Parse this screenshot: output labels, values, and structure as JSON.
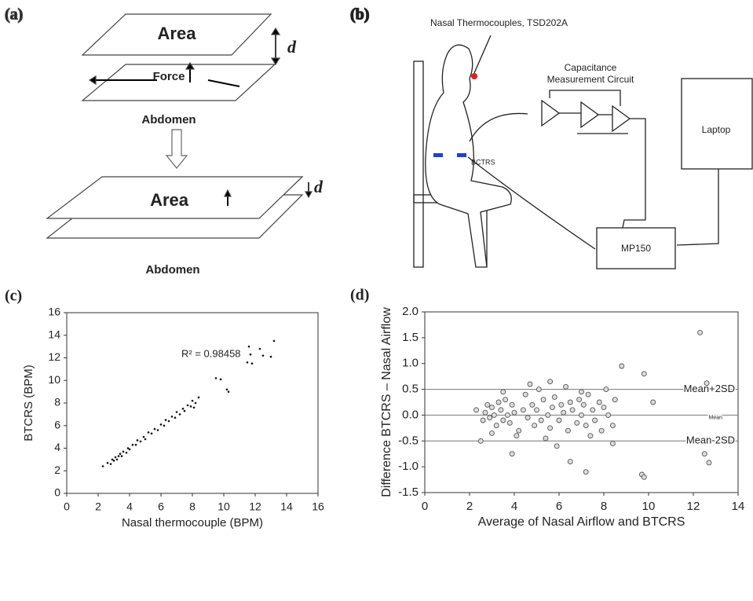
{
  "panels": {
    "a": {
      "label": "(a)",
      "top_area": "Area",
      "force": "Force",
      "top_abdomen": "Abdomen",
      "d_top": "d",
      "bottom_area": "Area",
      "d_bottom": "d",
      "bottom_abdomen": "Abdomen"
    },
    "b": {
      "label": "(b)",
      "sensor": "Nasal Thermocouples, TSD202A",
      "circuit_line1": "Capacitance",
      "circuit_line2": "Measurement Circuit",
      "laptop": "Laptop",
      "belt": "BCTRS",
      "amplifier": "MP150"
    }
  },
  "chart_data": [
    {
      "type": "scatter",
      "panel_label": "(c)",
      "x_label": "Nasal thermocouple (BPM)",
      "y_label": "BTCRS (BPM)",
      "annotation": "R² = 0.98458",
      "color": "#111111",
      "x": [
        2.3,
        2.6,
        2.8,
        2.9,
        3.0,
        3.1,
        3.2,
        3.3,
        3.4,
        3.5,
        3.6,
        3.8,
        3.9,
        4.0,
        4.2,
        4.4,
        4.5,
        4.7,
        4.9,
        5.0,
        5.2,
        5.4,
        5.6,
        5.8,
        6.0,
        6.2,
        6.3,
        6.5,
        6.7,
        6.9,
        7.0,
        7.2,
        7.4,
        7.5,
        7.7,
        7.9,
        8.0,
        8.2,
        8.4,
        8.1,
        9.5,
        9.8,
        10.2,
        10.3,
        11.5,
        11.7,
        11.8,
        12.3,
        12.5,
        13.0,
        13.2,
        11.6
      ],
      "values": [
        2.4,
        2.7,
        2.6,
        3.0,
        2.9,
        3.2,
        3.0,
        3.3,
        3.5,
        3.3,
        3.7,
        3.6,
        4.0,
        3.9,
        4.3,
        4.3,
        4.7,
        4.6,
        5.0,
        4.8,
        5.4,
        5.3,
        5.7,
        5.6,
        6.1,
        6.0,
        6.5,
        6.4,
        6.8,
        6.7,
        7.2,
        7.0,
        7.5,
        7.3,
        7.8,
        7.7,
        8.2,
        8.0,
        8.5,
        7.6,
        10.2,
        10.1,
        9.2,
        9.0,
        11.6,
        12.3,
        11.5,
        12.8,
        12.2,
        12.1,
        13.5,
        13.0
      ],
      "xlim": [
        0,
        16
      ],
      "xticks": [
        0,
        2,
        4,
        6,
        8,
        10,
        12,
        14,
        16
      ],
      "ylim": [
        0,
        16
      ],
      "yticks": [
        0,
        2,
        4,
        6,
        8,
        10,
        12,
        14,
        16
      ]
    },
    {
      "type": "scatter",
      "panel_label": "(d)",
      "x_label": "Average of Nasal Airflow and BTCRS",
      "y_label": "Difference BTCRS – Nasal Airflow",
      "color": "#555555",
      "x": [
        2.3,
        2.6,
        2.7,
        2.8,
        2.9,
        3.0,
        3.1,
        3.2,
        3.3,
        3.4,
        3.5,
        3.6,
        3.7,
        3.8,
        3.9,
        4.0,
        4.2,
        4.4,
        4.5,
        4.6,
        4.8,
        4.9,
        5.0,
        5.1,
        5.2,
        5.3,
        5.5,
        5.6,
        5.7,
        5.8,
        6.0,
        6.1,
        6.2,
        6.4,
        6.5,
        6.6,
        6.8,
        6.9,
        7.0,
        7.1,
        7.2,
        7.3,
        7.5,
        7.6,
        7.8,
        7.9,
        8.0,
        8.2,
        8.4,
        8.5,
        3.0,
        3.5,
        4.7,
        5.4,
        6.3,
        7.4,
        8.1,
        2.5,
        5.9,
        7.0,
        12.3,
        8.8,
        9.8,
        12.6,
        9.7,
        9.8,
        12.7,
        12.5,
        7.2,
        6.5,
        3.9,
        10.2,
        5.6,
        8.4,
        4.1
      ],
      "values": [
        0.1,
        -0.1,
        0.05,
        0.2,
        -0.05,
        0.15,
        0.0,
        -0.2,
        0.25,
        0.1,
        -0.1,
        0.3,
        0.0,
        -0.15,
        0.2,
        0.05,
        -0.3,
        0.1,
        0.4,
        -0.05,
        0.2,
        -0.2,
        0.1,
        0.5,
        -0.1,
        0.3,
        0.0,
        -0.25,
        0.15,
        0.35,
        -0.1,
        0.2,
        0.05,
        -0.3,
        0.25,
        0.1,
        -0.15,
        0.3,
        0.0,
        0.2,
        -0.2,
        0.4,
        0.1,
        -0.1,
        0.25,
        -0.3,
        0.15,
        0.0,
        -0.2,
        0.3,
        -0.35,
        0.45,
        0.6,
        -0.45,
        0.55,
        -0.4,
        0.5,
        -0.5,
        -0.6,
        0.45,
        1.6,
        0.95,
        0.8,
        0.62,
        -1.15,
        -1.2,
        -0.92,
        -0.75,
        -1.1,
        -0.9,
        -0.75,
        0.25,
        0.65,
        -0.55,
        -0.4
      ],
      "reference_lines": [
        {
          "value": 0.5,
          "label": "Mean+2SD"
        },
        {
          "value": 0,
          "label": "Mean"
        },
        {
          "value": -0.5,
          "label": "Mean-2SD"
        }
      ],
      "xlim": [
        0,
        14
      ],
      "xticks": [
        0,
        2,
        4,
        6,
        8,
        10,
        12,
        14
      ],
      "ylim": [
        -1.5,
        2.0
      ],
      "yticks": [
        -1.5,
        {
          "value": -1.0,
          "label": "-1.0"
        },
        -0.5,
        {
          "value": 0,
          "label": "0.0"
        },
        0.5,
        {
          "value": 1.0,
          "label": "1.0"
        },
        1.5,
        {
          "value": 2.0,
          "label": "2.0"
        }
      ]
    }
  ]
}
